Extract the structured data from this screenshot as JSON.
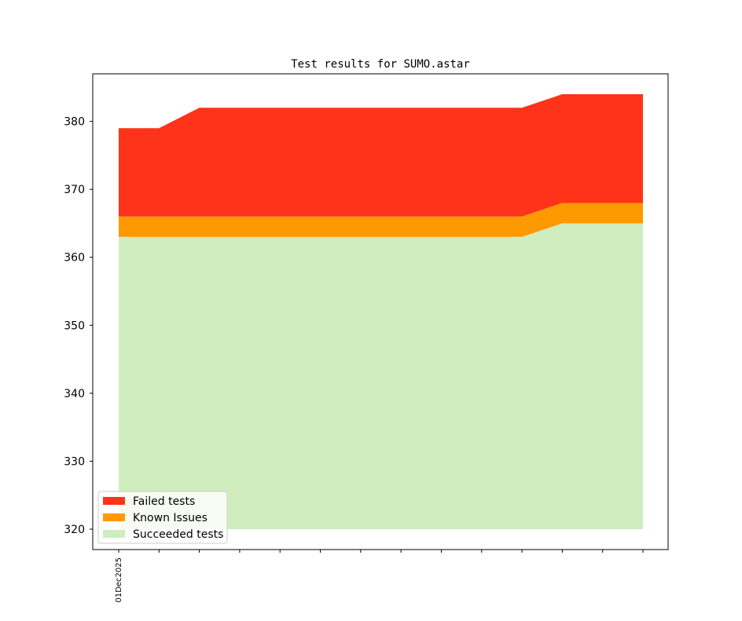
{
  "chart_data": {
    "type": "area",
    "title": "Test results for SUMO.astar",
    "xlabel": "",
    "ylabel": "",
    "x_tick_labels": [
      "01Dec2025",
      "",
      "",
      "",
      "",
      "",
      "",
      "",
      "",
      "",
      "",
      "",
      "",
      ""
    ],
    "x_count": 14,
    "ylim": [
      317,
      387
    ],
    "y_ticks": [
      320,
      330,
      340,
      350,
      360,
      370,
      380
    ],
    "baseline": 320,
    "grid": false,
    "legend_position": "lower-left",
    "series": [
      {
        "name": "Succeeded tests",
        "color": "#cfedbe",
        "values": [
          363,
          363,
          363,
          363,
          363,
          363,
          363,
          363,
          363,
          363,
          363,
          365,
          365,
          365
        ]
      },
      {
        "name": "Known Issues",
        "color": "#ff9900",
        "values": [
          3,
          3,
          3,
          3,
          3,
          3,
          3,
          3,
          3,
          3,
          3,
          3,
          3,
          3
        ]
      },
      {
        "name": "Failed tests",
        "color": "#ff331a",
        "values": [
          13,
          13,
          16,
          16,
          16,
          16,
          16,
          16,
          16,
          16,
          16,
          16,
          16,
          16
        ]
      }
    ],
    "legend_order": [
      "Failed tests",
      "Known Issues",
      "Succeeded tests"
    ]
  }
}
